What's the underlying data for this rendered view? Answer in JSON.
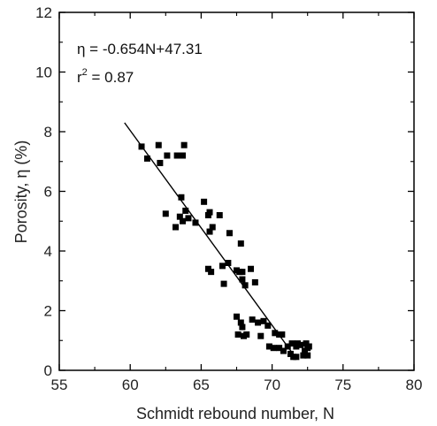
{
  "chart_data": {
    "type": "scatter",
    "xlabel": "Schmidt rebound number, N",
    "ylabel": "Porosity, η (%)",
    "xlim": [
      55,
      80
    ],
    "ylim": [
      0,
      12
    ],
    "x_ticks": [
      "55",
      "60",
      "65",
      "70",
      "75",
      "80"
    ],
    "y_ticks": [
      "0",
      "2",
      "4",
      "6",
      "8",
      "10",
      "12"
    ],
    "annotation": {
      "equation": "η = -0.654N+47.31",
      "r2_prefix": "r",
      "r2_sup": "2",
      "r2_suffix": " = 0.87"
    },
    "fit_line": {
      "x": [
        59.6,
        71.7
      ],
      "y": [
        8.3,
        0.4
      ]
    },
    "marker": "square",
    "color": "#000000",
    "points": [
      [
        60.8,
        7.5
      ],
      [
        61.2,
        7.1
      ],
      [
        62.0,
        7.55
      ],
      [
        62.1,
        6.95
      ],
      [
        62.6,
        7.2
      ],
      [
        63.3,
        7.2
      ],
      [
        63.7,
        7.2
      ],
      [
        63.8,
        7.55
      ],
      [
        62.5,
        5.25
      ],
      [
        63.2,
        4.8
      ],
      [
        63.5,
        5.15
      ],
      [
        63.6,
        5.8
      ],
      [
        63.7,
        5.0
      ],
      [
        63.9,
        5.35
      ],
      [
        64.1,
        5.1
      ],
      [
        64.6,
        4.95
      ],
      [
        65.2,
        5.65
      ],
      [
        65.5,
        5.2
      ],
      [
        65.6,
        5.3
      ],
      [
        65.6,
        4.65
      ],
      [
        65.8,
        4.8
      ],
      [
        66.3,
        5.2
      ],
      [
        65.5,
        3.4
      ],
      [
        65.7,
        3.3
      ],
      [
        66.5,
        3.5
      ],
      [
        66.6,
        2.9
      ],
      [
        66.9,
        3.6
      ],
      [
        67.0,
        4.6
      ],
      [
        67.5,
        3.35
      ],
      [
        67.7,
        3.3
      ],
      [
        67.8,
        4.25
      ],
      [
        67.9,
        3.3
      ],
      [
        67.9,
        3.05
      ],
      [
        68.1,
        2.85
      ],
      [
        68.5,
        3.4
      ],
      [
        68.8,
        2.95
      ],
      [
        68.6,
        1.7
      ],
      [
        69.0,
        1.6
      ],
      [
        69.2,
        1.15
      ],
      [
        69.4,
        1.65
      ],
      [
        69.7,
        1.5
      ],
      [
        67.5,
        1.8
      ],
      [
        67.6,
        1.2
      ],
      [
        67.8,
        1.6
      ],
      [
        67.9,
        1.45
      ],
      [
        68.0,
        1.15
      ],
      [
        68.2,
        1.2
      ],
      [
        69.8,
        0.8
      ],
      [
        70.1,
        0.75
      ],
      [
        70.2,
        1.25
      ],
      [
        70.5,
        1.2
      ],
      [
        70.7,
        1.2
      ],
      [
        70.5,
        0.75
      ],
      [
        70.8,
        0.65
      ],
      [
        71.1,
        0.8
      ],
      [
        71.3,
        0.55
      ],
      [
        71.4,
        0.9
      ],
      [
        71.5,
        0.45
      ],
      [
        71.7,
        0.45
      ],
      [
        71.7,
        0.8
      ],
      [
        71.8,
        0.9
      ],
      [
        72.0,
        0.85
      ],
      [
        72.2,
        0.5
      ],
      [
        72.3,
        0.65
      ],
      [
        72.4,
        0.9
      ],
      [
        72.5,
        0.75
      ],
      [
        72.5,
        0.5
      ],
      [
        72.6,
        0.8
      ]
    ]
  }
}
